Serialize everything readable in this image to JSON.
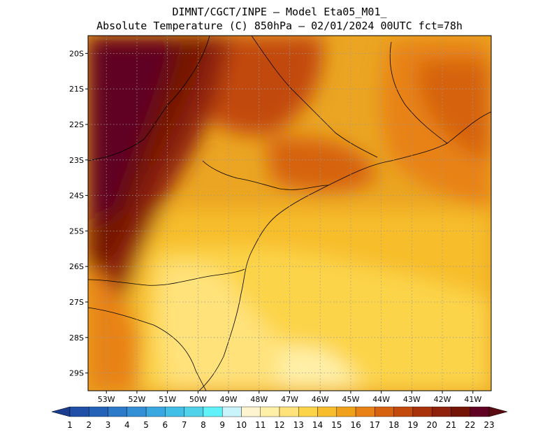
{
  "title": {
    "line1": "DIMNT/CGCT/INPE –  Model Eta05_M01_",
    "line2": "Absolute Temperature (C) 850hPa –  02/01/2024 00UTC fct=78h"
  },
  "map": {
    "lat_labels": [
      "20S",
      "21S",
      "22S",
      "23S",
      "24S",
      "25S",
      "26S",
      "27S",
      "28S",
      "29S"
    ],
    "lon_labels": [
      "53W",
      "52W",
      "51W",
      "50W",
      "49W",
      "48W",
      "47W",
      "46W",
      "45W",
      "44W",
      "43W",
      "42W",
      "41W"
    ],
    "lat_range": [
      -29.5,
      -19.5
    ],
    "lon_range": [
      -53.6,
      -40.4
    ],
    "grid": "dotted",
    "variable": "temperature_850hPa",
    "units": "C"
  },
  "colorbar": {
    "labels": [
      "1",
      "2",
      "3",
      "4",
      "5",
      "6",
      "7",
      "8",
      "9",
      "10",
      "11",
      "12",
      "13",
      "14",
      "15",
      "16",
      "17",
      "18",
      "19",
      "20",
      "21",
      "22",
      "23"
    ],
    "colors": [
      "#1a3d8f",
      "#1f4fa6",
      "#2462b8",
      "#2b79c9",
      "#3390d6",
      "#3aa8e0",
      "#42bfe6",
      "#4fd2ea",
      "#5ff2f8",
      "#c9f4fb",
      "#fff4d0",
      "#fff0a8",
      "#ffe27a",
      "#fcd44a",
      "#f7bd2a",
      "#f0a11a",
      "#e88216",
      "#d66210",
      "#c24a0c",
      "#a8330a",
      "#8e220a",
      "#741406",
      "#600022"
    ],
    "left_arrow_color": "#1a3d8f",
    "right_arrow_color": "#5a0a10"
  }
}
